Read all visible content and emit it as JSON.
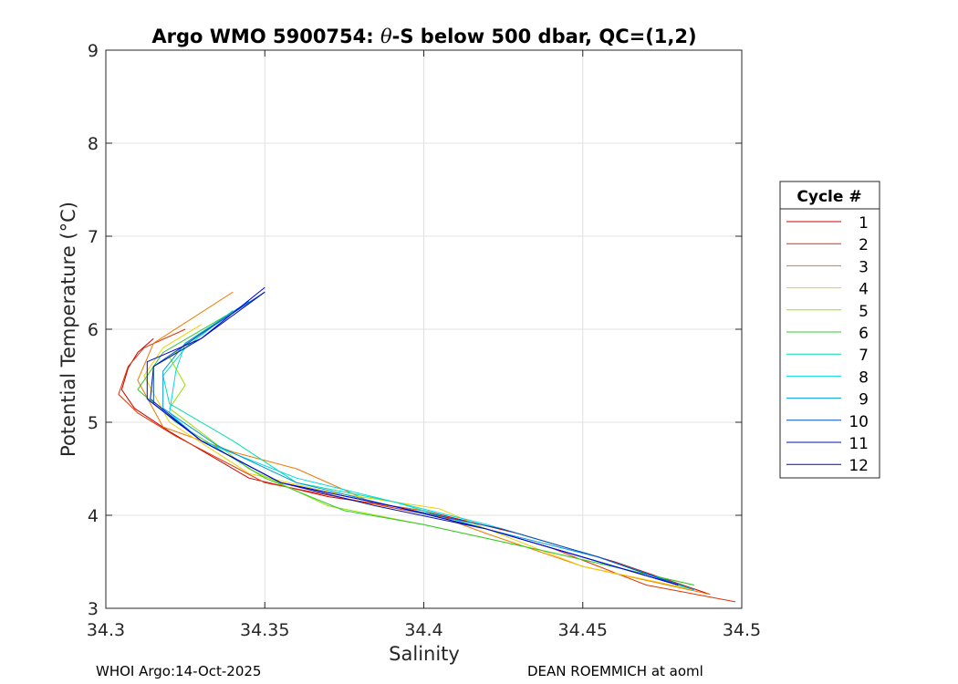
{
  "chart_data": {
    "type": "line",
    "title": "Argo WMO 5900754: θ-S below 500 dbar,  QC=(1,2)",
    "title_prefix": "Argo WMO 5900754: ",
    "title_theta": "θ",
    "title_suffix": "-S below 500 dbar,  QC=(1,2)",
    "xlabel": "Salinity",
    "ylabel": "Potential Temperature (°C)",
    "xlim": [
      34.3,
      34.5
    ],
    "ylim": [
      3,
      9
    ],
    "xticks": [
      "34.3",
      "34.35",
      "34.4",
      "34.45",
      "34.5"
    ],
    "yticks": [
      "3",
      "4",
      "5",
      "6",
      "7",
      "8",
      "9"
    ],
    "grid": true,
    "legend": {
      "title": "Cycle #",
      "placement": "outside-right"
    },
    "series": [
      {
        "name": "1",
        "color": "#cc0000",
        "points": [
          [
            34.315,
            5.9
          ],
          [
            34.31,
            5.75
          ],
          [
            34.307,
            5.58
          ],
          [
            34.305,
            5.35
          ],
          [
            34.309,
            5.15
          ],
          [
            34.32,
            4.9
          ],
          [
            34.345,
            4.4
          ],
          [
            34.37,
            4.2
          ],
          [
            34.4,
            4.05
          ],
          [
            34.43,
            3.8
          ],
          [
            34.46,
            3.5
          ],
          [
            34.49,
            3.15
          ]
        ]
      },
      {
        "name": "2",
        "color": "#e03000",
        "points": [
          [
            34.325,
            6.0
          ],
          [
            34.312,
            5.8
          ],
          [
            34.307,
            5.6
          ],
          [
            34.304,
            5.3
          ],
          [
            34.31,
            5.1
          ],
          [
            34.322,
            4.85
          ],
          [
            34.35,
            4.35
          ],
          [
            34.38,
            4.15
          ],
          [
            34.41,
            3.95
          ],
          [
            34.44,
            3.65
          ],
          [
            34.47,
            3.25
          ],
          [
            34.498,
            3.07
          ]
        ]
      },
      {
        "name": "3",
        "color": "#f07800",
        "points": [
          [
            34.34,
            6.4
          ],
          [
            34.315,
            5.85
          ],
          [
            34.31,
            5.45
          ],
          [
            34.318,
            4.95
          ],
          [
            34.34,
            4.68
          ],
          [
            34.36,
            4.5
          ],
          [
            34.385,
            4.12
          ],
          [
            34.4,
            4.05
          ],
          [
            34.42,
            3.8
          ],
          [
            34.45,
            3.45
          ],
          [
            34.49,
            3.15
          ]
        ]
      },
      {
        "name": "4",
        "color": "#f0d000",
        "points": [
          [
            34.33,
            6.05
          ],
          [
            34.318,
            5.8
          ],
          [
            34.312,
            5.5
          ],
          [
            34.32,
            5.0
          ],
          [
            34.345,
            4.45
          ],
          [
            34.37,
            4.25
          ],
          [
            34.405,
            4.07
          ],
          [
            34.42,
            3.85
          ],
          [
            34.45,
            3.45
          ],
          [
            34.485,
            3.2
          ]
        ]
      },
      {
        "name": "5",
        "color": "#98e000",
        "points": [
          [
            34.34,
            6.2
          ],
          [
            34.32,
            5.7
          ],
          [
            34.325,
            5.4
          ],
          [
            34.32,
            5.15
          ],
          [
            34.345,
            4.5
          ],
          [
            34.37,
            4.1
          ],
          [
            34.4,
            3.9
          ],
          [
            34.44,
            3.6
          ],
          [
            34.485,
            3.25
          ]
        ]
      },
      {
        "name": "6",
        "color": "#30c830",
        "points": [
          [
            34.338,
            6.15
          ],
          [
            34.318,
            5.75
          ],
          [
            34.31,
            5.35
          ],
          [
            34.322,
            5.0
          ],
          [
            34.35,
            4.4
          ],
          [
            34.375,
            4.05
          ],
          [
            34.4,
            3.9
          ],
          [
            34.44,
            3.6
          ],
          [
            34.485,
            3.25
          ]
        ]
      },
      {
        "name": "7",
        "color": "#00e0b0",
        "points": [
          [
            34.34,
            6.2
          ],
          [
            34.325,
            5.8
          ],
          [
            34.318,
            5.5
          ],
          [
            34.32,
            5.2
          ],
          [
            34.34,
            4.8
          ],
          [
            34.36,
            4.35
          ],
          [
            34.39,
            4.15
          ],
          [
            34.42,
            3.85
          ],
          [
            34.45,
            3.55
          ],
          [
            34.485,
            3.2
          ]
        ]
      },
      {
        "name": "8",
        "color": "#00d8e8",
        "points": [
          [
            34.345,
            6.3
          ],
          [
            34.325,
            5.85
          ],
          [
            34.322,
            5.55
          ],
          [
            34.32,
            5.1
          ],
          [
            34.33,
            4.8
          ],
          [
            34.36,
            4.4
          ],
          [
            34.39,
            4.15
          ],
          [
            34.42,
            3.9
          ],
          [
            34.455,
            3.55
          ],
          [
            34.485,
            3.2
          ]
        ]
      },
      {
        "name": "9",
        "color": "#0098d8",
        "points": [
          [
            34.345,
            6.3
          ],
          [
            34.325,
            5.85
          ],
          [
            34.318,
            5.55
          ],
          [
            34.318,
            5.15
          ],
          [
            34.335,
            4.75
          ],
          [
            34.36,
            4.35
          ],
          [
            34.39,
            4.1
          ],
          [
            34.42,
            3.85
          ],
          [
            34.455,
            3.55
          ],
          [
            34.485,
            3.2
          ]
        ]
      },
      {
        "name": "10",
        "color": "#0050c0",
        "points": [
          [
            34.35,
            6.4
          ],
          [
            34.33,
            5.95
          ],
          [
            34.315,
            5.6
          ],
          [
            34.315,
            5.2
          ],
          [
            34.33,
            4.8
          ],
          [
            34.355,
            4.35
          ],
          [
            34.39,
            4.1
          ],
          [
            34.425,
            3.85
          ],
          [
            34.455,
            3.55
          ],
          [
            34.48,
            3.25
          ]
        ]
      },
      {
        "name": "11",
        "color": "#0010b0",
        "points": [
          [
            34.35,
            6.4
          ],
          [
            34.33,
            5.9
          ],
          [
            34.315,
            5.6
          ],
          [
            34.314,
            5.25
          ],
          [
            34.33,
            4.8
          ],
          [
            34.355,
            4.35
          ],
          [
            34.385,
            4.1
          ],
          [
            34.42,
            3.85
          ],
          [
            34.45,
            3.55
          ],
          [
            34.48,
            3.25
          ]
        ]
      },
      {
        "name": "12",
        "color": "#0000e0",
        "points": [
          [
            34.35,
            6.45
          ],
          [
            34.33,
            5.9
          ],
          [
            34.313,
            5.65
          ],
          [
            34.313,
            5.25
          ],
          [
            34.33,
            4.8
          ],
          [
            34.355,
            4.35
          ],
          [
            34.39,
            4.1
          ],
          [
            34.42,
            3.85
          ],
          [
            34.45,
            3.55
          ],
          [
            34.48,
            3.25
          ]
        ]
      }
    ]
  },
  "footer": {
    "left": "WHOI Argo:14-Oct-2025",
    "right": "DEAN ROEMMICH at aoml"
  }
}
